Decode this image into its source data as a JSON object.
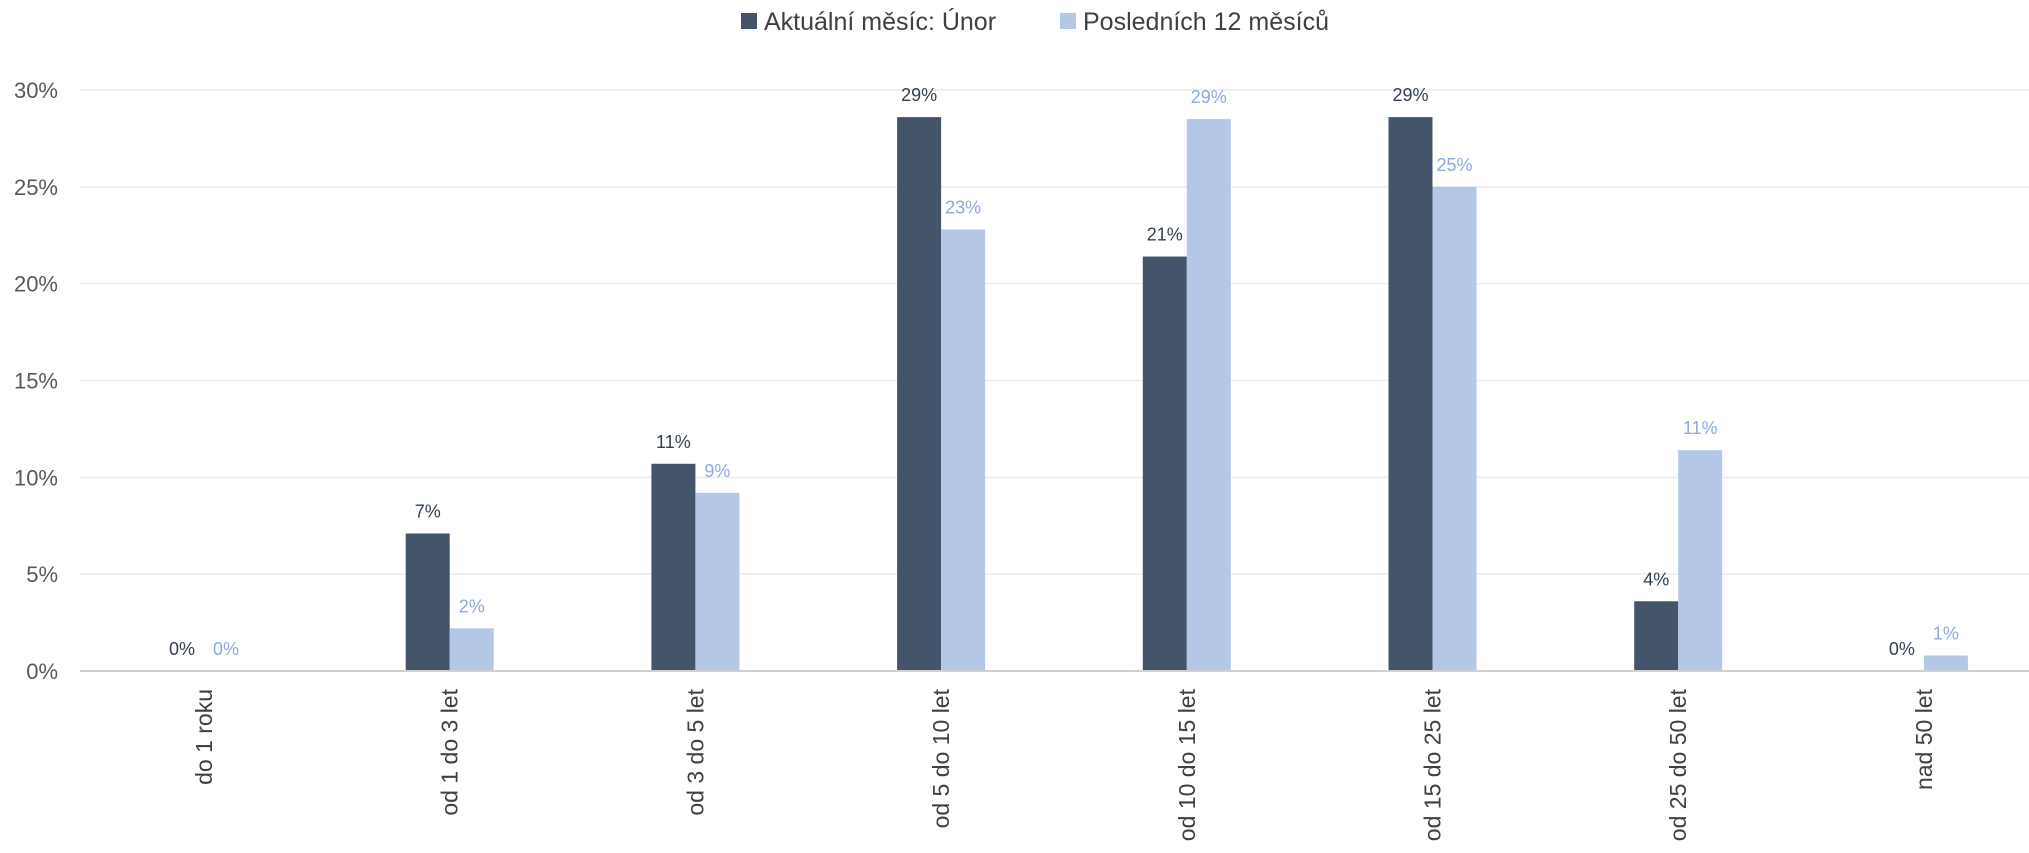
{
  "chart_data": {
    "type": "bar",
    "categories": [
      "do 1 roku",
      "od 1 do 3 let",
      "od 3 do 5 let",
      "od 5 do 10 let",
      "od 10 do 15 let",
      "od 15 do 25 let",
      "od 25 do 50 let",
      "nad 50 let"
    ],
    "series": [
      {
        "name": "Aktuální měsíc: Únor",
        "color": "#44546A",
        "values": [
          0,
          7.1,
          10.7,
          28.6,
          21.4,
          28.6,
          3.6,
          0
        ],
        "labels": [
          "0%",
          "7%",
          "11%",
          "29%",
          "21%",
          "29%",
          "4%",
          "0%"
        ]
      },
      {
        "name": "Posledních 12 měsíců",
        "color": "#B4C7E7",
        "label_color": "#8EA9DB",
        "values": [
          0,
          2.2,
          9.2,
          22.8,
          28.5,
          25.0,
          11.4,
          0.8
        ],
        "labels": [
          "0%",
          "2%",
          "9%",
          "23%",
          "29%",
          "25%",
          "11%",
          "1%"
        ]
      }
    ],
    "ylim": [
      0,
      30
    ],
    "yticks": [
      0,
      5,
      10,
      15,
      20,
      25,
      30
    ],
    "ytick_labels": [
      "0%",
      "5%",
      "10%",
      "15%",
      "20%",
      "25%",
      "30%"
    ],
    "legend_position": "top-center",
    "grid": true,
    "gridline_color": "#EBEBEB",
    "axis_color": "#D0D0D0"
  }
}
